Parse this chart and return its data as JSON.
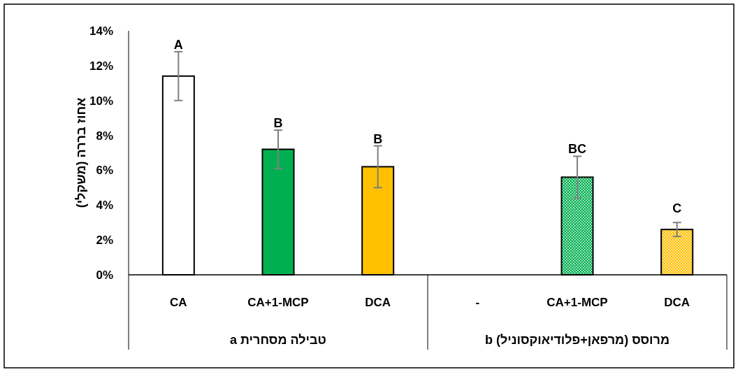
{
  "chart_data": {
    "type": "bar",
    "ylabel": "אחוז בררה (משקלי)",
    "categories": [
      "CA",
      "CA+1-MCP",
      "DCA",
      "-",
      "CA+1-MCP",
      "DCA"
    ],
    "values": [
      11.4,
      7.2,
      6.2,
      null,
      5.6,
      2.6
    ],
    "colors": [
      "#ffffff",
      "#00b050",
      "#ffc000",
      null,
      "#00b050",
      "#ffc000"
    ],
    "errors": [
      1.4,
      1.1,
      1.2,
      null,
      1.2,
      0.4
    ],
    "value_labels": [
      "A",
      "B",
      "B",
      null,
      "BC",
      "C"
    ],
    "ylim": [
      0,
      14
    ],
    "yticks": [
      {
        "value": 0,
        "label": "0%"
      },
      {
        "value": 2,
        "label": "2%"
      },
      {
        "value": 4,
        "label": "4%"
      },
      {
        "value": 6,
        "label": "6%"
      },
      {
        "value": 8,
        "label": "8%"
      },
      {
        "value": 10,
        "label": "10%"
      },
      {
        "value": 12,
        "label": "12%"
      },
      {
        "value": 14,
        "label": "14%"
      }
    ],
    "annotations": [
      "טבילה מסחרית a",
      "מרוסס (מרפאן+פלודיאוקסוניל) b"
    ],
    "grid": false
  }
}
